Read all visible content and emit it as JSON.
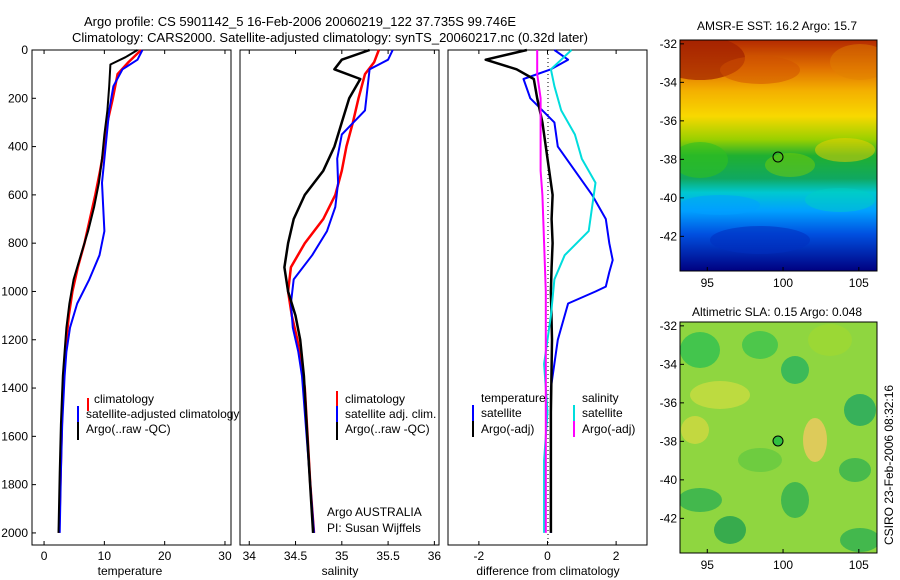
{
  "figure": {
    "title_line1": "Argo profile: CS 5901142_5 16-Feb-2006 20060219_122 37.735S 99.746E",
    "title_line2": "Climatology: CARS2000. Satellite-adjusted climatology: synTS_20060217.nc (0.32d later)",
    "credit": "CSIRO 23-Feb-2006 08:32:16",
    "colors": {
      "climatology": "#ff0000",
      "satellite": "#0000ff",
      "argo": "#000000",
      "salinity_sat": "#00dddd",
      "salinity_argo": "#ff00ff"
    }
  },
  "chart_data": [
    {
      "type": "line",
      "xlabel": "temperature",
      "xlim": [
        -2,
        31
      ],
      "ylim": [
        2050,
        0
      ],
      "xticks": [
        0,
        10,
        20,
        30
      ],
      "yticks": [
        0,
        200,
        400,
        600,
        800,
        1000,
        1200,
        1400,
        1600,
        1800,
        2000
      ],
      "legend": [
        "climatology",
        "satellite-adjusted climatology",
        "Argo(..raw -QC)"
      ],
      "series": [
        {
          "name": "climatology",
          "color": "#ff0000",
          "width": 2.5,
          "x": [
            16.1,
            14,
            12.2,
            11.4,
            10.5,
            10,
            9.3,
            8.5,
            7.6,
            6.7,
            5.6,
            4.7,
            4.1,
            3.7,
            3.4,
            3.1,
            2.9,
            2.7,
            2.5
          ],
          "y": [
            0,
            50,
            100,
            200,
            300,
            400,
            500,
            600,
            700,
            800,
            900,
            1000,
            1100,
            1200,
            1300,
            1400,
            1600,
            1800,
            2000
          ]
        },
        {
          "name": "satellite-adjusted climatology",
          "color": "#0000ff",
          "width": 2,
          "x": [
            16.3,
            15.5,
            13,
            11.5,
            10.8,
            10.4,
            10,
            9.6,
            9.8,
            10,
            9.2,
            7.5,
            5.5,
            4.3,
            3.7,
            3.4,
            3,
            2.8,
            2.6
          ],
          "y": [
            0,
            40,
            80,
            150,
            250,
            350,
            450,
            550,
            650,
            750,
            850,
            950,
            1050,
            1150,
            1250,
            1350,
            1550,
            1750,
            2000
          ]
        },
        {
          "name": "Argo(..raw -QC)",
          "color": "#000000",
          "width": 2,
          "x": [
            15.5,
            13.5,
            11,
            10.8,
            10.5,
            10,
            9.6,
            9.1,
            8.3,
            7.3,
            6.1,
            4.9,
            4.2,
            3.7,
            3.4,
            3.1,
            2.8,
            2.6,
            2.4
          ],
          "y": [
            0,
            30,
            60,
            150,
            250,
            350,
            450,
            550,
            650,
            750,
            850,
            950,
            1050,
            1150,
            1250,
            1350,
            1550,
            1750,
            2000
          ]
        }
      ]
    },
    {
      "type": "line",
      "xlabel": "salinity",
      "xlim": [
        33.9,
        36.05
      ],
      "ylim": [
        2050,
        0
      ],
      "xticks": [
        34,
        34.5,
        35,
        35.5,
        36
      ],
      "yticks": [],
      "legend": [
        "climatology",
        "satellite adj. clim.",
        "Argo(..raw -QC)"
      ],
      "annotation": [
        "Argo AUSTRALIA",
        "PI: Susan Wijffels"
      ],
      "series": [
        {
          "name": "climatology",
          "color": "#ff0000",
          "width": 2.5,
          "x": [
            35.4,
            35.35,
            35.25,
            35.18,
            35.12,
            35.05,
            35,
            34.93,
            34.8,
            34.6,
            34.45,
            34.42,
            34.46,
            34.52,
            34.56,
            34.6,
            34.63,
            34.66,
            34.7
          ],
          "y": [
            0,
            50,
            100,
            200,
            300,
            400,
            500,
            600,
            700,
            800,
            900,
            1000,
            1100,
            1200,
            1300,
            1400,
            1600,
            1800,
            2000
          ]
        },
        {
          "name": "satellite adj. clim.",
          "color": "#0000ff",
          "width": 2,
          "x": [
            35.55,
            35.5,
            35.3,
            35.28,
            35.25,
            35,
            34.95,
            34.96,
            34.93,
            34.84,
            34.68,
            34.48,
            34.45,
            34.47,
            34.53,
            34.57,
            34.61,
            34.65,
            34.7
          ],
          "y": [
            0,
            40,
            80,
            150,
            250,
            350,
            450,
            550,
            650,
            750,
            850,
            950,
            1050,
            1150,
            1250,
            1350,
            1550,
            1750,
            2000
          ]
        },
        {
          "name": "Argo(..raw -QC)",
          "color": "#000000",
          "width": 2.5,
          "x": [
            35.3,
            35,
            34.92,
            35.2,
            35.08,
            35,
            34.92,
            34.8,
            34.6,
            34.48,
            34.42,
            34.38,
            34.42,
            34.5,
            34.55,
            34.59,
            34.62,
            34.65,
            34.69
          ],
          "y": [
            0,
            40,
            80,
            120,
            200,
            300,
            400,
            500,
            600,
            700,
            800,
            900,
            1000,
            1100,
            1200,
            1350,
            1550,
            1750,
            2000
          ]
        }
      ]
    },
    {
      "type": "line",
      "xlabel": "difference from climatology",
      "xlim": [
        -2.9,
        2.9
      ],
      "ylim": [
        2050,
        0
      ],
      "xticks": [
        -2,
        0,
        2
      ],
      "yticks": [],
      "legend": [
        "temperature",
        "satellite",
        "Argo(-adj)",
        "salinity",
        "satellite",
        "Argo(-adj)"
      ],
      "series": [
        {
          "name": "temperature satellite",
          "color": "#0000ff",
          "width": 2,
          "x": [
            0.2,
            0.6,
            0.1,
            -0.7,
            -0.5,
            0.2,
            0.3,
            0.8,
            1.3,
            1.7,
            1.8,
            1.9,
            1.8,
            1.7,
            1.4,
            0.6,
            0.3,
            0.1,
            0.1,
            0.1
          ],
          "y": [
            0,
            40,
            80,
            120,
            200,
            300,
            400,
            500,
            600,
            700,
            800,
            870,
            920,
            980,
            1000,
            1050,
            1200,
            1400,
            1700,
            2000
          ]
        },
        {
          "name": "temperature Argo(-adj)",
          "color": "#000000",
          "width": 2.5,
          "x": [
            -0.6,
            -1.8,
            -0.9,
            -0.4,
            -0.3,
            -0.15,
            -0.05,
            0.05,
            0.15,
            0.12,
            0.15,
            0.12,
            0.1,
            0.13,
            0.1,
            0.1
          ],
          "y": [
            0,
            40,
            80,
            120,
            200,
            300,
            400,
            500,
            600,
            700,
            800,
            900,
            1000,
            1200,
            1500,
            2000
          ]
        },
        {
          "name": "salinity satellite",
          "color": "#00dddd",
          "width": 2,
          "x": [
            0.7,
            0.4,
            0.1,
            0.2,
            0.4,
            0.8,
            1,
            1.4,
            1.3,
            1.2,
            0.5,
            0.2,
            0.1,
            -0.1,
            0,
            -0.1,
            -0.1
          ],
          "y": [
            0,
            40,
            80,
            150,
            250,
            350,
            450,
            550,
            650,
            750,
            850,
            950,
            1100,
            1300,
            1500,
            1700,
            2000
          ]
        },
        {
          "name": "salinity Argo(-adj)",
          "color": "#ff00ff",
          "width": 2,
          "x": [
            -0.3,
            -0.3,
            -0.2,
            -0.2,
            -0.2,
            -0.2,
            -0.15,
            -0.1,
            -0.05,
            -0.05,
            -0.05,
            -0.05,
            -0.05
          ],
          "y": [
            0,
            100,
            200,
            300,
            400,
            500,
            600,
            800,
            1000,
            1200,
            1500,
            1800,
            2000
          ]
        }
      ]
    }
  ],
  "maps": [
    {
      "title": "AMSR-E SST: 16.2 Argo: 15.7",
      "type": "heatmap",
      "xticks": [
        95,
        100,
        105
      ],
      "yticks": [
        -32,
        -34,
        -36,
        -38,
        -40,
        -42
      ],
      "xlim": [
        93.2,
        106.2
      ],
      "ylim": [
        -43.8,
        -31.8
      ],
      "marker": {
        "lon": 99.746,
        "lat": -37.735
      }
    },
    {
      "title": "Altimetric SLA: 0.15 Argo: 0.048",
      "type": "heatmap",
      "xticks": [
        95,
        100,
        105
      ],
      "yticks": [
        -32,
        -34,
        -36,
        -38,
        -40,
        -42
      ],
      "xlim": [
        93.2,
        106.2
      ],
      "ylim": [
        -43.8,
        -31.8
      ],
      "marker": {
        "lon": 99.746,
        "lat": -37.735
      }
    }
  ]
}
